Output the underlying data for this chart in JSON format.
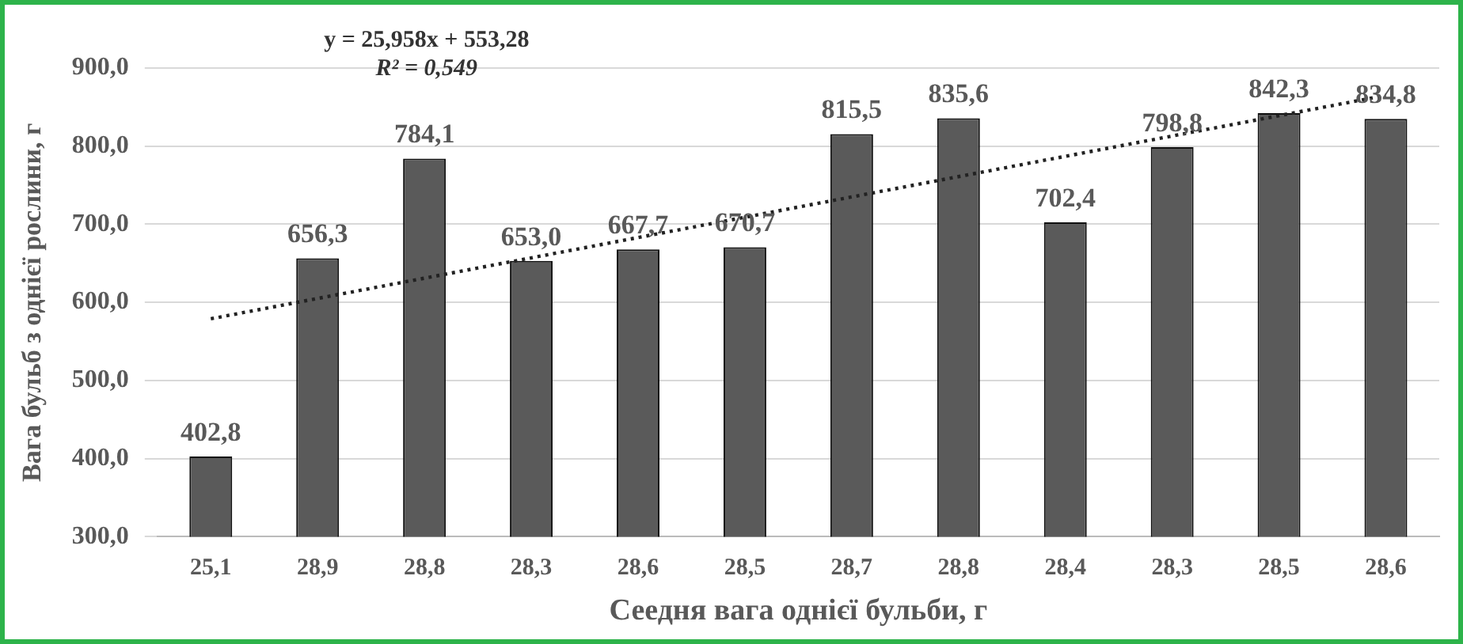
{
  "chart_data": {
    "type": "bar",
    "xlabel": "Сеедня вага однієї бульби, г",
    "ylabel": "Вага бульб з однієї рослини, г",
    "categories": [
      "25,1",
      "28,9",
      "28,8",
      "28,3",
      "28,6",
      "28,5",
      "28,7",
      "28,8",
      "28,4",
      "28,3",
      "28,5",
      "28,6"
    ],
    "series": [
      {
        "color": "#5a5a5a",
        "values": [
          402.8,
          656.3,
          784.1,
          653.0,
          667.7,
          670.7,
          815.5,
          835.6,
          702.4,
          798.8,
          842.3,
          834.8
        ],
        "value_labels": [
          "402,8",
          "656,3",
          "784,1",
          "653,0",
          "667,7",
          "670,7",
          "815,5",
          "835,6",
          "702,4",
          "798,8",
          "842,3",
          "834,8"
        ]
      },
      {
        "type": "line",
        "color": "#222222",
        "line_style": "dotted",
        "marker": "none",
        "values": [
          579,
          null,
          null,
          null,
          null,
          null,
          null,
          null,
          null,
          null,
          null,
          865
        ]
      }
    ],
    "ylim": [
      300,
      900
    ],
    "yticks": [
      {
        "value": 300,
        "label": "300,0"
      },
      {
        "value": 400,
        "label": "400,0"
      },
      {
        "value": 500,
        "label": "500,0"
      },
      {
        "value": 600,
        "label": "600,0"
      },
      {
        "value": 700,
        "label": "700,0"
      },
      {
        "value": 800,
        "label": "800,0"
      },
      {
        "value": 900,
        "label": "900,0"
      }
    ],
    "grid": "y",
    "legend": false,
    "annotations": [
      "y = 25,958x + 553,28",
      "R² = 0,549"
    ]
  }
}
